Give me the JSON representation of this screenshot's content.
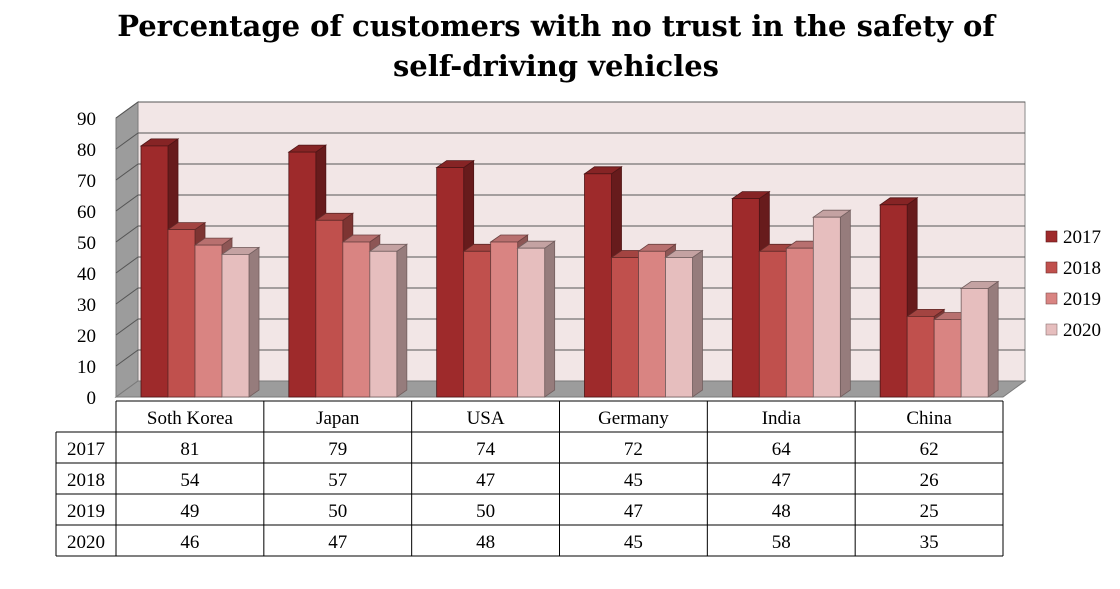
{
  "title": {
    "line1": "Percentage of customers with no trust in the safety of",
    "line2": "self-driving vehicles"
  },
  "colors": {
    "2017": "#9e2a2b",
    "2018": "#c0504d",
    "2019": "#d98482",
    "2020": "#e6bebe",
    "wall": "#f2e6e6",
    "side_wall": "#9c9c9c",
    "floor": "#9c9c9c",
    "gridline": "#555555"
  },
  "chart_data": {
    "type": "bar",
    "title": "Percentage of customers with no trust in the safety of self-driving vehicles",
    "xlabel": "",
    "ylabel": "",
    "categories": [
      "Soth Korea",
      "Japan",
      "USA",
      "Germany",
      "India",
      "China"
    ],
    "series": [
      {
        "name": "2017",
        "values": [
          81,
          79,
          74,
          72,
          64,
          62
        ]
      },
      {
        "name": "2018",
        "values": [
          54,
          57,
          47,
          45,
          47,
          26
        ]
      },
      {
        "name": "2019",
        "values": [
          49,
          50,
          50,
          47,
          48,
          25
        ]
      },
      {
        "name": "2020",
        "values": [
          46,
          47,
          48,
          45,
          58,
          35
        ]
      }
    ],
    "ylim": [
      0,
      90
    ],
    "yticks": [
      "0",
      "10",
      "20",
      "30",
      "40",
      "50",
      "60",
      "70",
      "80",
      "90"
    ],
    "grid": true,
    "legend": "right",
    "data_table": true
  }
}
